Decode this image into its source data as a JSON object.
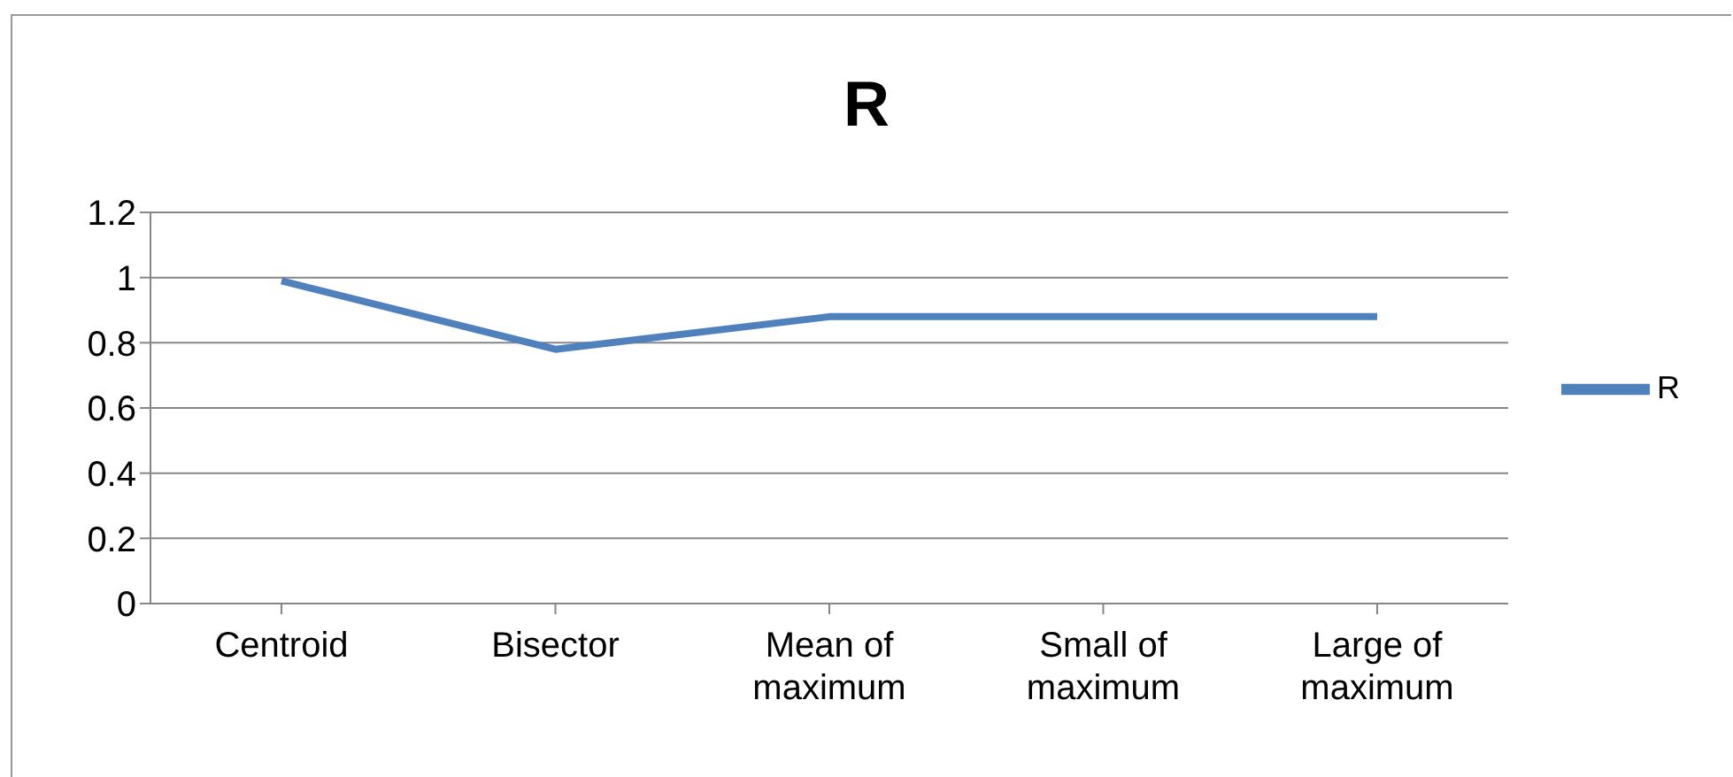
{
  "chart_data": {
    "type": "line",
    "title": "R",
    "categories": [
      "Centroid",
      "Bisector",
      "Mean of maximum",
      "Small of maximum",
      "Large of maximum"
    ],
    "series": [
      {
        "name": "R",
        "color": "#4f81bd",
        "values": [
          0.99,
          0.78,
          0.88,
          0.88,
          0.88
        ]
      }
    ],
    "ylim": [
      0,
      1.2
    ],
    "yticks": [
      0,
      0.2,
      0.4,
      0.6,
      0.8,
      1,
      1.2
    ],
    "grid": "y",
    "legend": "right",
    "marker": "none",
    "line_style": "solid"
  }
}
